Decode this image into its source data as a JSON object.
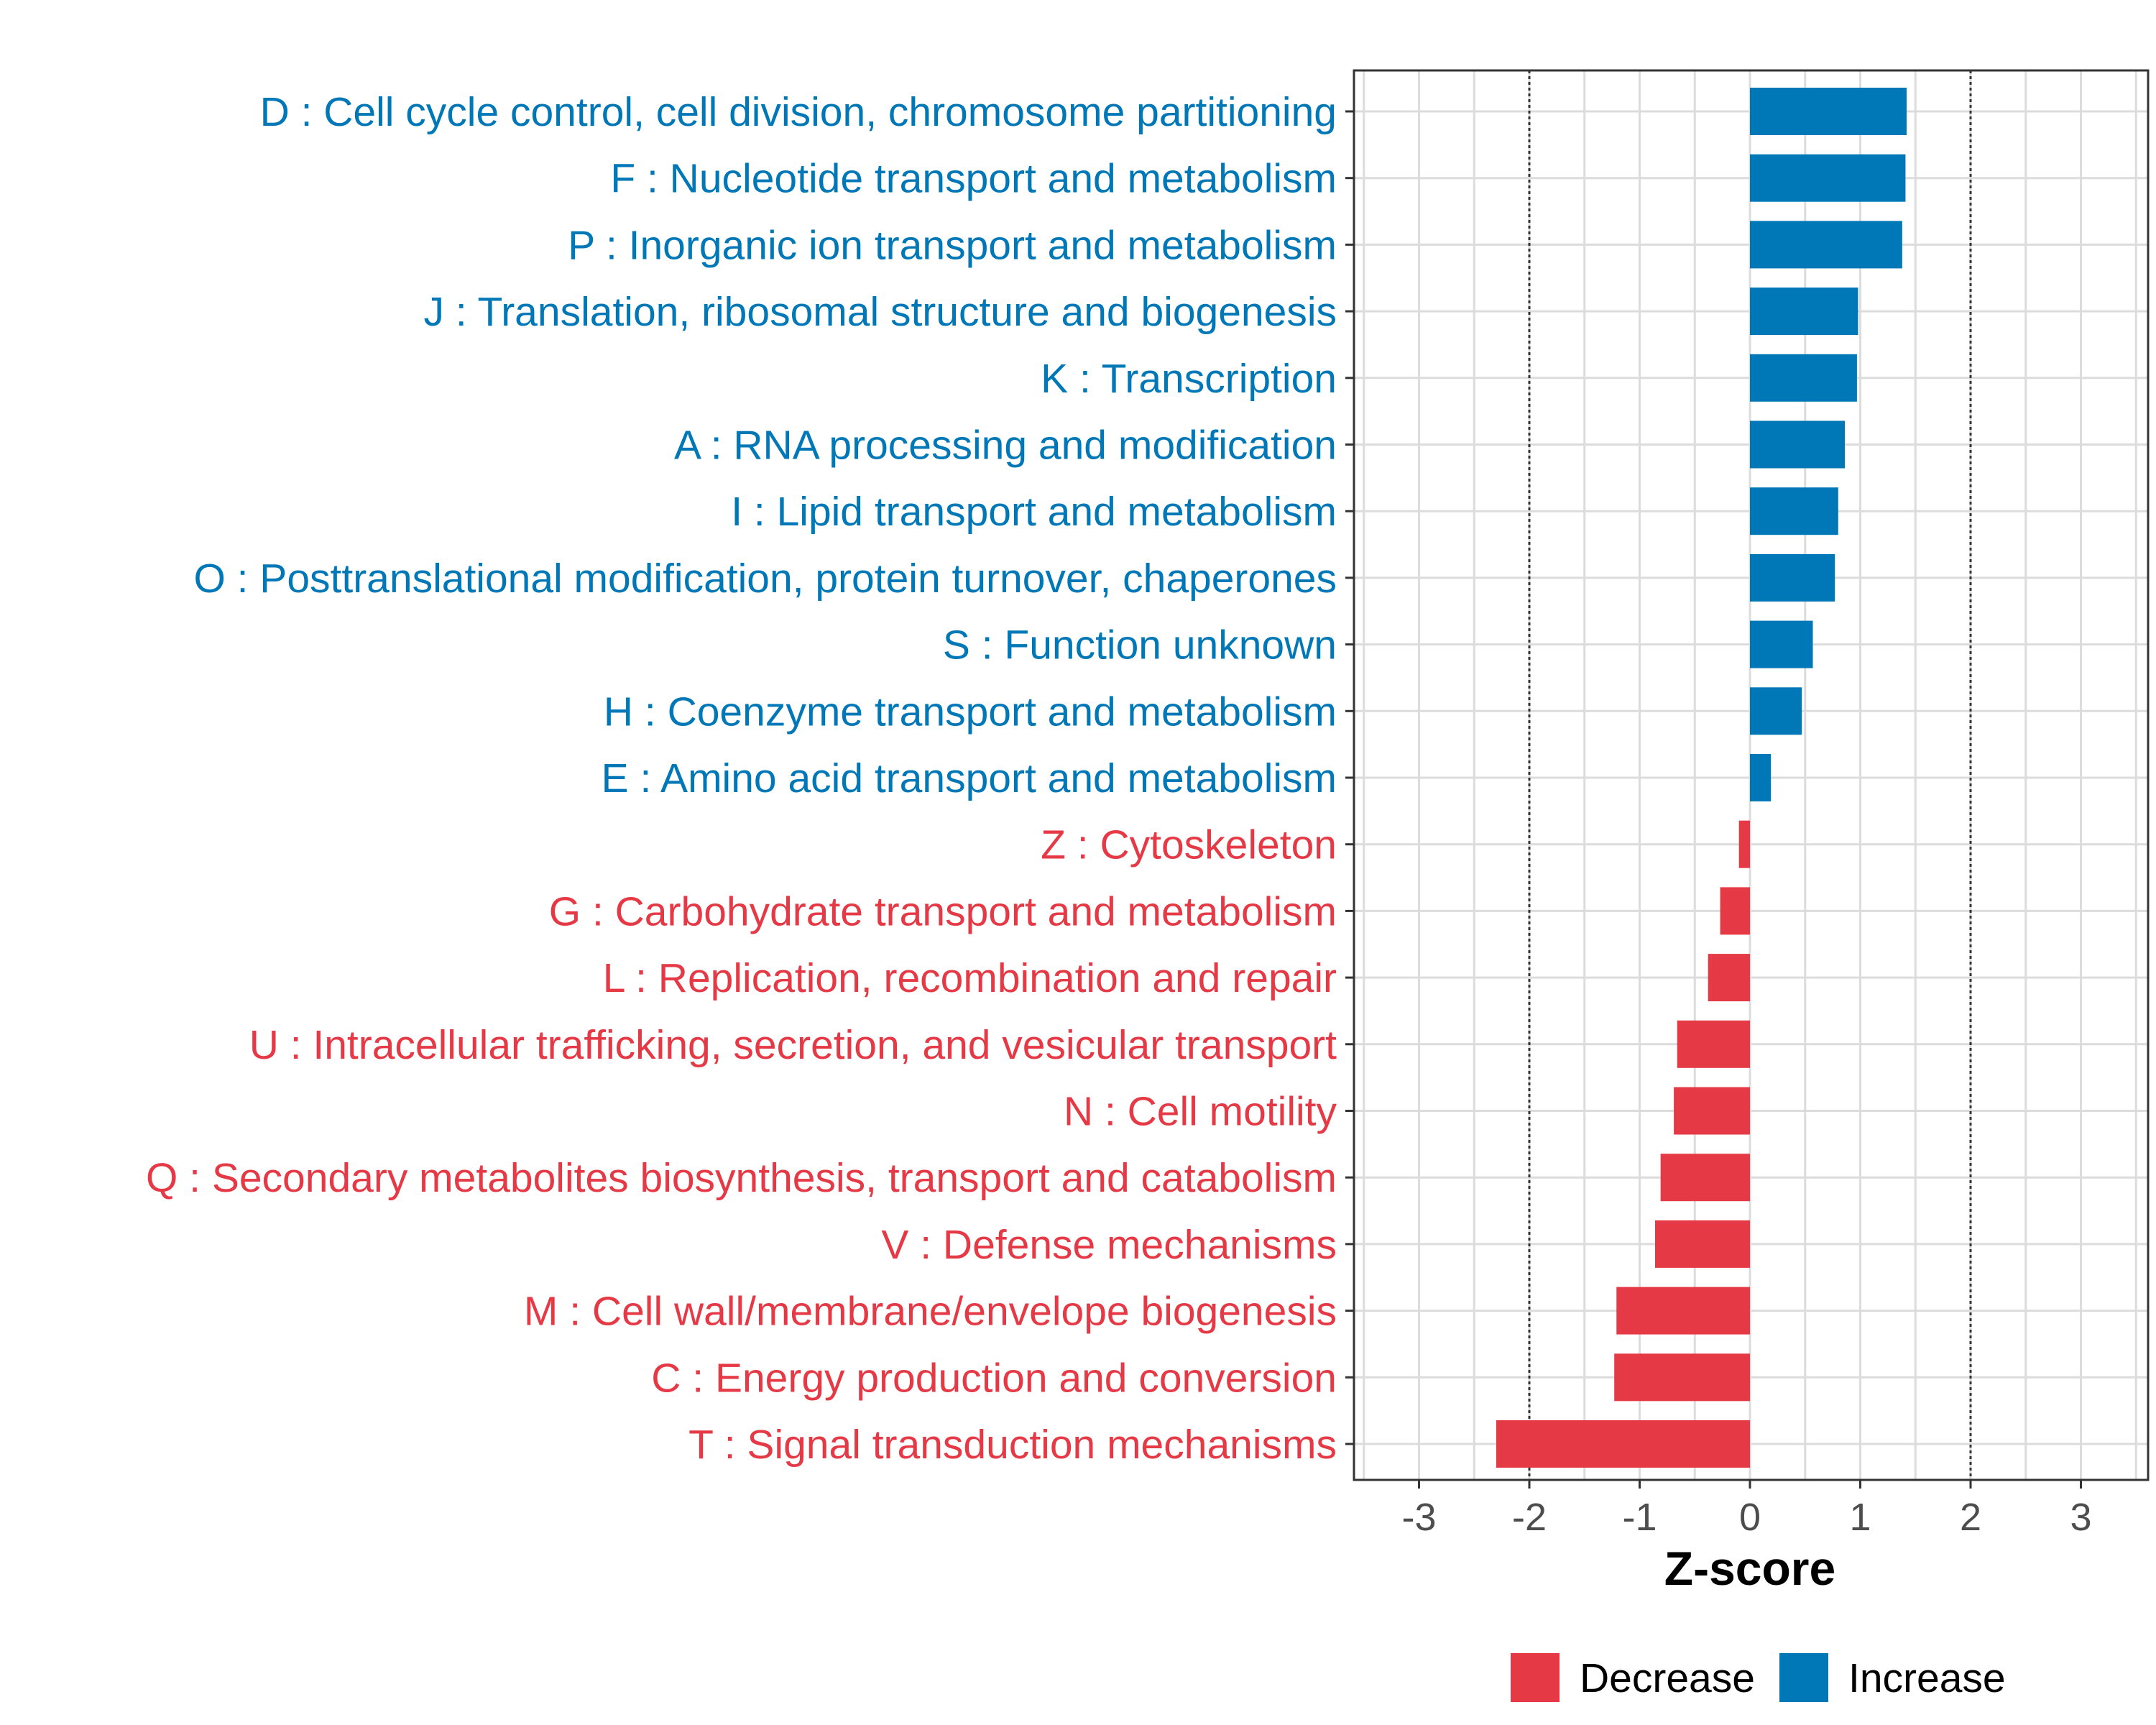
{
  "chart_data": {
    "type": "bar",
    "orientation": "horizontal",
    "title": "",
    "xlabel": "Z-score",
    "ylabel": "",
    "xlim": [
      -3.6,
      3.6
    ],
    "xticks": [
      -3,
      -2,
      -1,
      0,
      1,
      2,
      3
    ],
    "xtick_labels": [
      "-3",
      "-2",
      "-1",
      "0",
      "1",
      "2",
      "3"
    ],
    "reference_lines": [
      -2,
      2
    ],
    "grid": true,
    "legend_position": "bottom",
    "colors": {
      "Decrease": "#e63946",
      "Increase": "#0077b6"
    },
    "legend": [
      {
        "name": "Decrease",
        "color": "#e63946"
      },
      {
        "name": "Increase",
        "color": "#0077b6"
      }
    ],
    "categories": [
      "D : Cell cycle control, cell division, chromosome partitioning",
      "F : Nucleotide transport and metabolism",
      "P : Inorganic ion transport and metabolism",
      "J : Translation, ribosomal structure and biogenesis",
      "K : Transcription",
      "A : RNA processing and modification",
      "I : Lipid transport and metabolism",
      "O : Posttranslational modification, protein turnover, chaperones",
      "S : Function unknown",
      "H : Coenzyme transport and metabolism",
      "E : Amino acid transport and metabolism",
      "Z : Cytoskeleton",
      "G : Carbohydrate transport and metabolism",
      "L : Replication, recombination and repair",
      "U : Intracellular trafficking, secretion, and vesicular transport",
      "N : Cell motility",
      "Q : Secondary metabolites biosynthesis, transport and catabolism",
      "V : Defense mechanisms",
      "M : Cell wall/membrane/envelope biogenesis",
      "C : Energy production and conversion",
      "T : Signal transduction mechanisms"
    ],
    "values": [
      1.42,
      1.41,
      1.38,
      0.98,
      0.97,
      0.86,
      0.8,
      0.77,
      0.57,
      0.47,
      0.19,
      -0.1,
      -0.27,
      -0.38,
      -0.66,
      -0.69,
      -0.81,
      -0.86,
      -1.21,
      -1.23,
      -2.3
    ],
    "groups": [
      "Increase",
      "Increase",
      "Increase",
      "Increase",
      "Increase",
      "Increase",
      "Increase",
      "Increase",
      "Increase",
      "Increase",
      "Increase",
      "Decrease",
      "Decrease",
      "Decrease",
      "Decrease",
      "Decrease",
      "Decrease",
      "Decrease",
      "Decrease",
      "Decrease",
      "Decrease"
    ]
  }
}
